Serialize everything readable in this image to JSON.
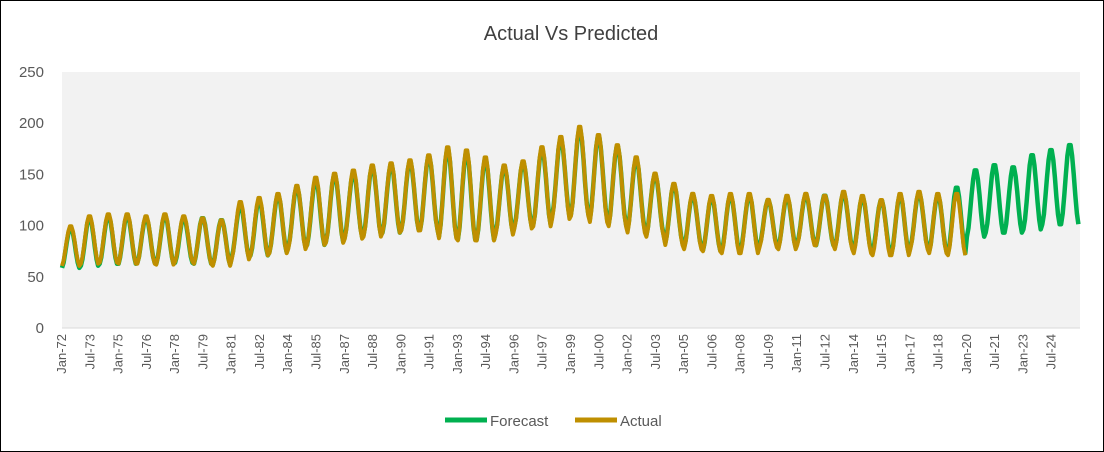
{
  "chart_data": {
    "type": "line",
    "title": "Actual Vs Predicted",
    "xlabel": "",
    "ylabel": "",
    "ylim": [
      0,
      250
    ],
    "yticks": [
      0,
      50,
      100,
      150,
      200,
      250
    ],
    "x_start": "Jan-72",
    "x_end": "Dec-25",
    "frequency": "monthly",
    "x_tick_labels": [
      "Jan-72",
      "Jul-73",
      "Jan-75",
      "Jul-76",
      "Jan-78",
      "Jul-79",
      "Jan-81",
      "Jul-82",
      "Jan-84",
      "Jul-85",
      "Jan-87",
      "Jul-88",
      "Jan-90",
      "Jul-91",
      "Jan-93",
      "Jul-94",
      "Jan-96",
      "Jul-97",
      "Jan-99",
      "Jul-00",
      "Jan-02",
      "Jul-03",
      "Jan-05",
      "Jul-06",
      "Jan-08",
      "Jul-09",
      "Jan-11",
      "Jul-12",
      "Jan-14",
      "Jul-15",
      "Jan-17",
      "Jul-18",
      "Jan-20",
      "Jul-21",
      "Jan-23",
      "Jul-24"
    ],
    "legend_position": "bottom",
    "grid": false,
    "plot_background": "#f2f2f2",
    "series": [
      {
        "name": "Forecast",
        "color": "#00b050",
        "period": "Jan-72 to Dec-25",
        "yearly_min": [
          58,
          60,
          62,
          62,
          63,
          62,
          63,
          62,
          61,
          68,
          70,
          73,
          78,
          80,
          83,
          88,
          90,
          92,
          95,
          95,
          88,
          85,
          85,
          92,
          98,
          100,
          108,
          110,
          105,
          100,
          95,
          90,
          82,
          78,
          75,
          75,
          75,
          80,
          78,
          82,
          80,
          78,
          75,
          74,
          72,
          78,
          74,
          72,
          88,
          92,
          92,
          95,
          100,
          100
        ],
        "yearly_max": [
          98,
          108,
          110,
          110,
          108,
          110,
          108,
          108,
          106,
          120,
          125,
          130,
          138,
          145,
          150,
          152,
          158,
          160,
          163,
          168,
          175,
          172,
          165,
          158,
          162,
          175,
          185,
          195,
          188,
          178,
          165,
          150,
          140,
          130,
          128,
          130,
          130,
          125,
          128,
          130,
          130,
          132,
          128,
          125,
          130,
          132,
          130,
          138,
          155,
          160,
          158,
          170,
          175,
          180
        ]
      },
      {
        "name": "Actual",
        "color": "#bf8f00",
        "period": "Jan-72 to Dec-19",
        "yearly_min": [
          60,
          62,
          63,
          62,
          62,
          61,
          64,
          62,
          60,
          66,
          70,
          72,
          76,
          80,
          82,
          86,
          88,
          92,
          94,
          94,
          86,
          84,
          84,
          90,
          96,
          98,
          105,
          108,
          102,
          98,
          92,
          88,
          80,
          76,
          74,
          72,
          72,
          78,
          76,
          80,
          80,
          76,
          72,
          70,
          70,
          76,
          72,
          70
        ],
        "yearly_max": [
          100,
          110,
          112,
          112,
          110,
          112,
          110,
          108,
          106,
          124,
          128,
          132,
          140,
          148,
          152,
          155,
          160,
          162,
          165,
          170,
          178,
          175,
          168,
          160,
          164,
          178,
          188,
          198,
          190,
          180,
          168,
          152,
          142,
          132,
          130,
          132,
          132,
          126,
          130,
          132,
          130,
          134,
          130,
          126,
          132,
          134,
          132,
          132
        ]
      }
    ]
  }
}
